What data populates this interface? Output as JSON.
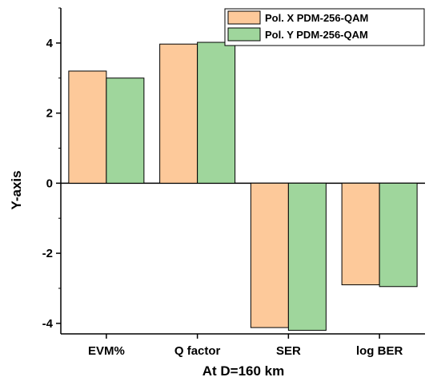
{
  "chart_data": {
    "type": "bar",
    "categories": [
      "EVM%",
      "Q factor",
      "SER",
      "log BER"
    ],
    "series": [
      {
        "name": "Pol. X PDM-256-QAM",
        "color": "#fdc99a",
        "values": [
          3.2,
          3.97,
          -4.12,
          -2.9
        ]
      },
      {
        "name": "Pol. Y PDM-256-QAM",
        "color": "#9fd69c",
        "values": [
          3.0,
          4.02,
          -4.2,
          -2.95
        ]
      }
    ],
    "xlabel": "At D=160 km",
    "ylabel": "Y-axis",
    "ylim": [
      -4.3,
      5.0
    ],
    "yticks": [
      "-4",
      "-2",
      "0",
      "2",
      "4"
    ],
    "ytick_values": [
      -4,
      -2,
      0,
      2,
      4
    ],
    "legend_position": "top-right",
    "grid": false
  }
}
